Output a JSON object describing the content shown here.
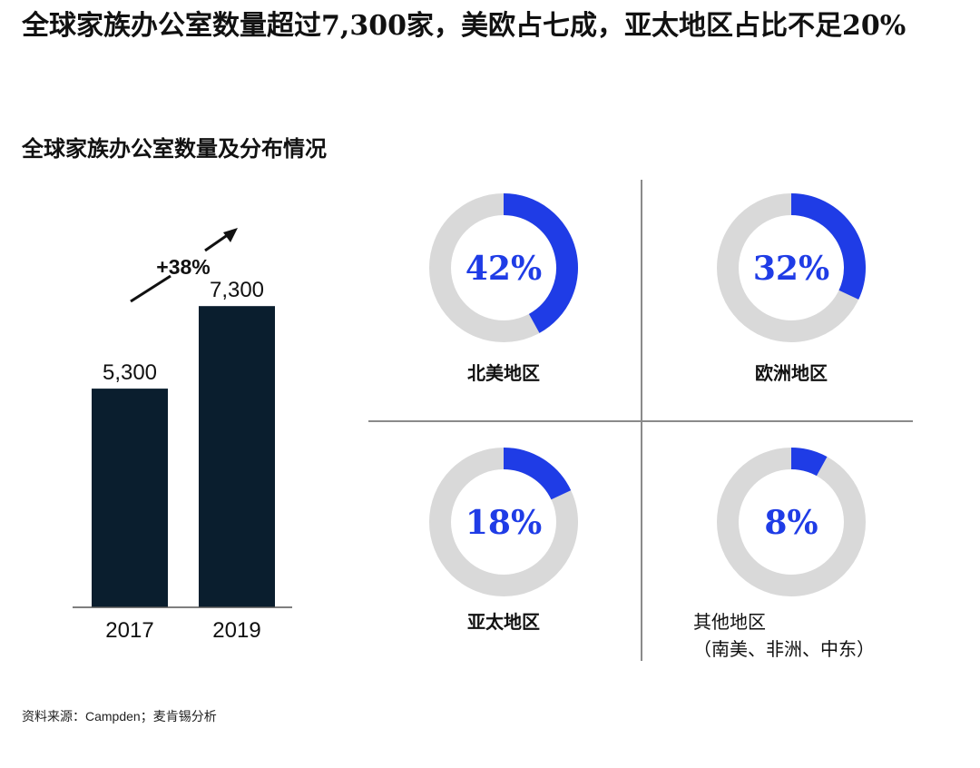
{
  "headline": "全球家族办公室数量超过7,300家，美欧占七成，亚太地区占比不足20%",
  "chart_data": [
    {
      "type": "bar",
      "title": "全球家族办公室数量及分布情况",
      "categories": [
        "2017",
        "2019"
      ],
      "values": [
        5300,
        7300
      ],
      "value_labels": [
        "5,300",
        "7,300"
      ],
      "annotation": "+38%",
      "ylim": [
        0,
        8800
      ],
      "colors": {
        "bar": "#0a1e2e"
      }
    },
    {
      "type": "pie",
      "style": "donut",
      "colors": {
        "fill": "#1f3ce6",
        "track": "#d9d9d9"
      },
      "slices": [
        {
          "label": "北美地区",
          "value": 42,
          "display": "42%"
        },
        {
          "label": "欧洲地区",
          "value": 32,
          "display": "32%"
        },
        {
          "label": "亚太地区",
          "value": 18,
          "display": "18%"
        },
        {
          "label": "其他地区",
          "sublabel": "（南美、非洲、中东）",
          "value": 8,
          "display": "8%"
        }
      ]
    }
  ],
  "source": {
    "prefix": "资料来源：",
    "name": "Campden",
    "suffix": "；麦肯锡分析"
  }
}
